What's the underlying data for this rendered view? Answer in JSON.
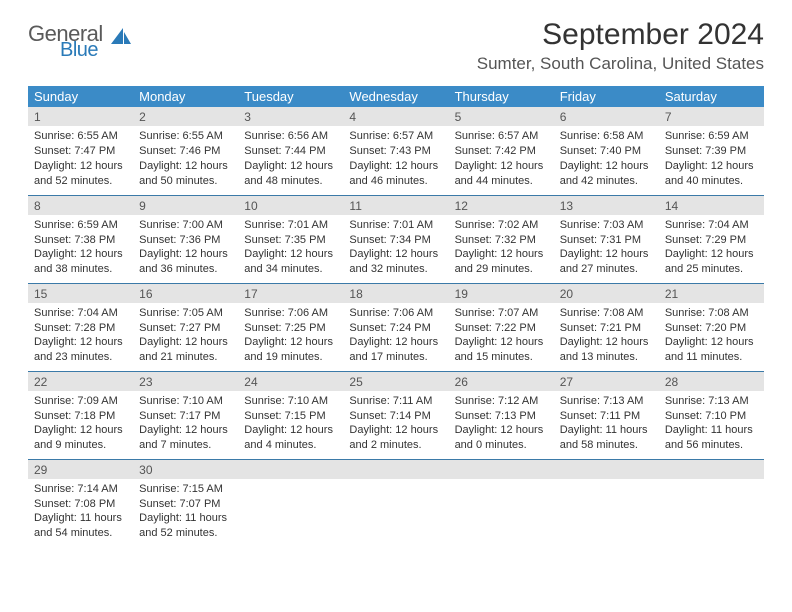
{
  "logo": {
    "line1": "General",
    "line2": "Blue",
    "line1_color": "#5a5a5a",
    "line2_color": "#2a7ab8",
    "shape_color": "#2a7ab8"
  },
  "title": "September 2024",
  "location": "Sumter, South Carolina, United States",
  "header_bg": "#3b8bc7",
  "daynum_bg": "#e4e4e4",
  "border_color": "#3b7aa8",
  "background_color": "#ffffff",
  "base_fontsize": 11,
  "title_fontsize": 30,
  "location_fontsize": 17,
  "day_header_fontsize": 13,
  "day_names": [
    "Sunday",
    "Monday",
    "Tuesday",
    "Wednesday",
    "Thursday",
    "Friday",
    "Saturday"
  ],
  "weeks": [
    [
      {
        "n": "1",
        "sr": "Sunrise: 6:55 AM",
        "ss": "Sunset: 7:47 PM",
        "dl": "Daylight: 12 hours and 52 minutes."
      },
      {
        "n": "2",
        "sr": "Sunrise: 6:55 AM",
        "ss": "Sunset: 7:46 PM",
        "dl": "Daylight: 12 hours and 50 minutes."
      },
      {
        "n": "3",
        "sr": "Sunrise: 6:56 AM",
        "ss": "Sunset: 7:44 PM",
        "dl": "Daylight: 12 hours and 48 minutes."
      },
      {
        "n": "4",
        "sr": "Sunrise: 6:57 AM",
        "ss": "Sunset: 7:43 PM",
        "dl": "Daylight: 12 hours and 46 minutes."
      },
      {
        "n": "5",
        "sr": "Sunrise: 6:57 AM",
        "ss": "Sunset: 7:42 PM",
        "dl": "Daylight: 12 hours and 44 minutes."
      },
      {
        "n": "6",
        "sr": "Sunrise: 6:58 AM",
        "ss": "Sunset: 7:40 PM",
        "dl": "Daylight: 12 hours and 42 minutes."
      },
      {
        "n": "7",
        "sr": "Sunrise: 6:59 AM",
        "ss": "Sunset: 7:39 PM",
        "dl": "Daylight: 12 hours and 40 minutes."
      }
    ],
    [
      {
        "n": "8",
        "sr": "Sunrise: 6:59 AM",
        "ss": "Sunset: 7:38 PM",
        "dl": "Daylight: 12 hours and 38 minutes."
      },
      {
        "n": "9",
        "sr": "Sunrise: 7:00 AM",
        "ss": "Sunset: 7:36 PM",
        "dl": "Daylight: 12 hours and 36 minutes."
      },
      {
        "n": "10",
        "sr": "Sunrise: 7:01 AM",
        "ss": "Sunset: 7:35 PM",
        "dl": "Daylight: 12 hours and 34 minutes."
      },
      {
        "n": "11",
        "sr": "Sunrise: 7:01 AM",
        "ss": "Sunset: 7:34 PM",
        "dl": "Daylight: 12 hours and 32 minutes."
      },
      {
        "n": "12",
        "sr": "Sunrise: 7:02 AM",
        "ss": "Sunset: 7:32 PM",
        "dl": "Daylight: 12 hours and 29 minutes."
      },
      {
        "n": "13",
        "sr": "Sunrise: 7:03 AM",
        "ss": "Sunset: 7:31 PM",
        "dl": "Daylight: 12 hours and 27 minutes."
      },
      {
        "n": "14",
        "sr": "Sunrise: 7:04 AM",
        "ss": "Sunset: 7:29 PM",
        "dl": "Daylight: 12 hours and 25 minutes."
      }
    ],
    [
      {
        "n": "15",
        "sr": "Sunrise: 7:04 AM",
        "ss": "Sunset: 7:28 PM",
        "dl": "Daylight: 12 hours and 23 minutes."
      },
      {
        "n": "16",
        "sr": "Sunrise: 7:05 AM",
        "ss": "Sunset: 7:27 PM",
        "dl": "Daylight: 12 hours and 21 minutes."
      },
      {
        "n": "17",
        "sr": "Sunrise: 7:06 AM",
        "ss": "Sunset: 7:25 PM",
        "dl": "Daylight: 12 hours and 19 minutes."
      },
      {
        "n": "18",
        "sr": "Sunrise: 7:06 AM",
        "ss": "Sunset: 7:24 PM",
        "dl": "Daylight: 12 hours and 17 minutes."
      },
      {
        "n": "19",
        "sr": "Sunrise: 7:07 AM",
        "ss": "Sunset: 7:22 PM",
        "dl": "Daylight: 12 hours and 15 minutes."
      },
      {
        "n": "20",
        "sr": "Sunrise: 7:08 AM",
        "ss": "Sunset: 7:21 PM",
        "dl": "Daylight: 12 hours and 13 minutes."
      },
      {
        "n": "21",
        "sr": "Sunrise: 7:08 AM",
        "ss": "Sunset: 7:20 PM",
        "dl": "Daylight: 12 hours and 11 minutes."
      }
    ],
    [
      {
        "n": "22",
        "sr": "Sunrise: 7:09 AM",
        "ss": "Sunset: 7:18 PM",
        "dl": "Daylight: 12 hours and 9 minutes."
      },
      {
        "n": "23",
        "sr": "Sunrise: 7:10 AM",
        "ss": "Sunset: 7:17 PM",
        "dl": "Daylight: 12 hours and 7 minutes."
      },
      {
        "n": "24",
        "sr": "Sunrise: 7:10 AM",
        "ss": "Sunset: 7:15 PM",
        "dl": "Daylight: 12 hours and 4 minutes."
      },
      {
        "n": "25",
        "sr": "Sunrise: 7:11 AM",
        "ss": "Sunset: 7:14 PM",
        "dl": "Daylight: 12 hours and 2 minutes."
      },
      {
        "n": "26",
        "sr": "Sunrise: 7:12 AM",
        "ss": "Sunset: 7:13 PM",
        "dl": "Daylight: 12 hours and 0 minutes."
      },
      {
        "n": "27",
        "sr": "Sunrise: 7:13 AM",
        "ss": "Sunset: 7:11 PM",
        "dl": "Daylight: 11 hours and 58 minutes."
      },
      {
        "n": "28",
        "sr": "Sunrise: 7:13 AM",
        "ss": "Sunset: 7:10 PM",
        "dl": "Daylight: 11 hours and 56 minutes."
      }
    ],
    [
      {
        "n": "29",
        "sr": "Sunrise: 7:14 AM",
        "ss": "Sunset: 7:08 PM",
        "dl": "Daylight: 11 hours and 54 minutes."
      },
      {
        "n": "30",
        "sr": "Sunrise: 7:15 AM",
        "ss": "Sunset: 7:07 PM",
        "dl": "Daylight: 11 hours and 52 minutes."
      },
      null,
      null,
      null,
      null,
      null
    ]
  ]
}
